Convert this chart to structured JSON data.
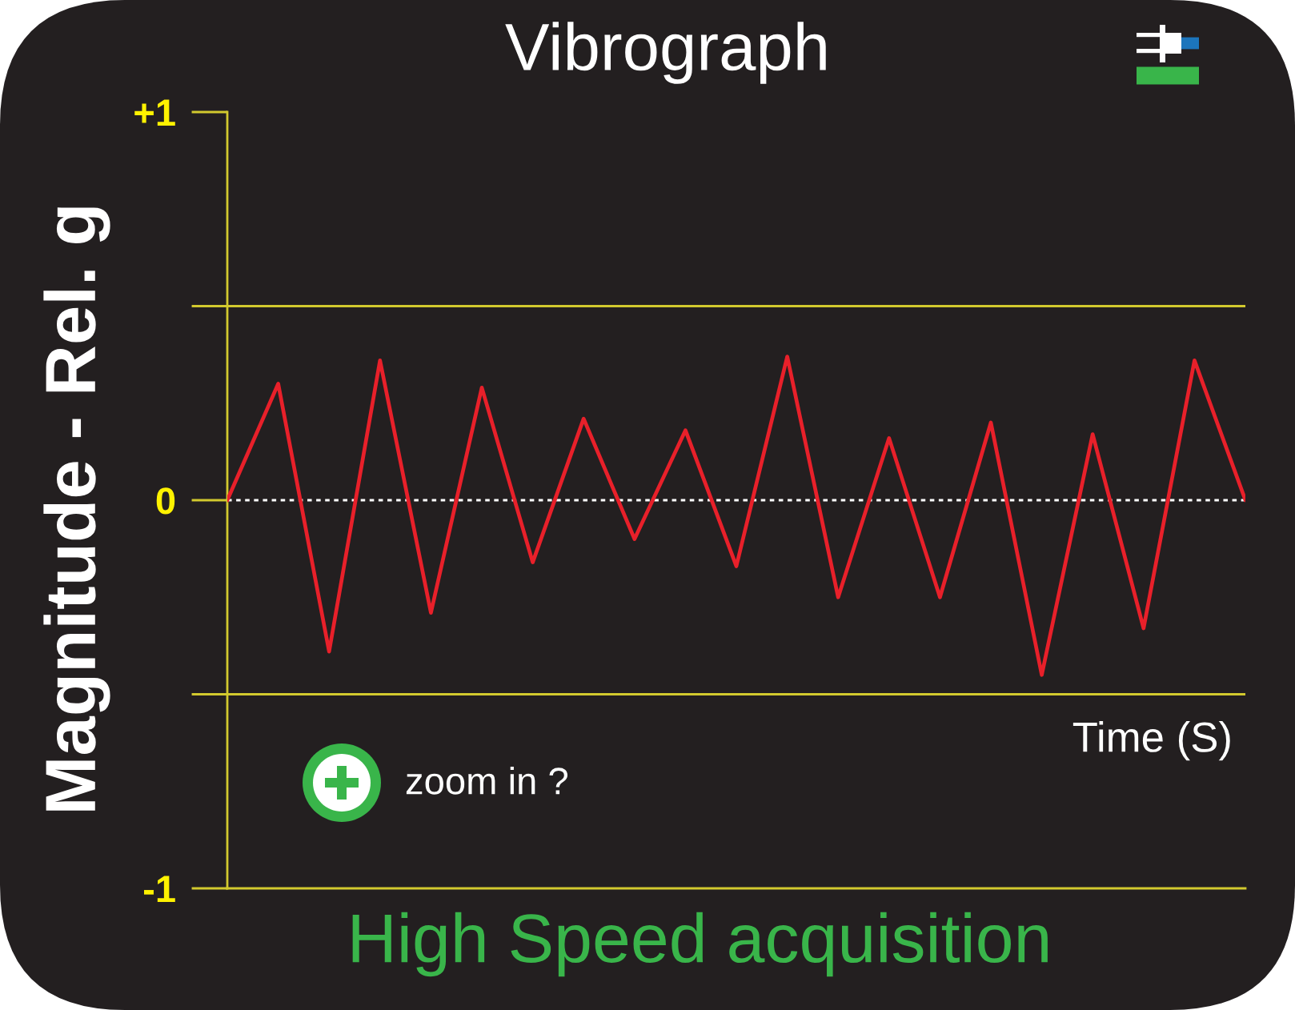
{
  "chart_data": {
    "type": "line",
    "title": "Vibrograph",
    "xlabel": "Time (S)",
    "ylabel": "Magnitude - Rel. g",
    "annotations": [
      "zoom in ?",
      "High Speed acquisition"
    ],
    "categories": [
      null,
      null,
      null,
      null,
      null,
      null,
      null,
      null,
      null,
      null,
      null,
      null,
      null,
      null,
      null,
      null,
      null,
      null,
      null,
      null,
      null
    ],
    "series": [
      {
        "color": "#e8202a",
        "values": [
          0,
          0.3,
          -0.39,
          0.36,
          -0.29,
          0.29,
          -0.16,
          0.21,
          -0.1,
          0.18,
          -0.17,
          0.37,
          -0.25,
          0.16,
          -0.25,
          0.2,
          -0.45,
          0.17,
          -0.33,
          0.36,
          0
        ]
      }
    ],
    "ylim": [
      -1,
      1
    ],
    "yticks": [
      {
        "value": 1,
        "label": "+1"
      },
      {
        "value": 0.5,
        "label": null
      },
      0,
      {
        "value": -0.5,
        "label": null
      },
      -1
    ],
    "grid": "y",
    "ref_lines": [
      {
        "axis": "y",
        "value": 0,
        "color": "#ffffff",
        "line_style": "dotted"
      }
    ]
  }
}
